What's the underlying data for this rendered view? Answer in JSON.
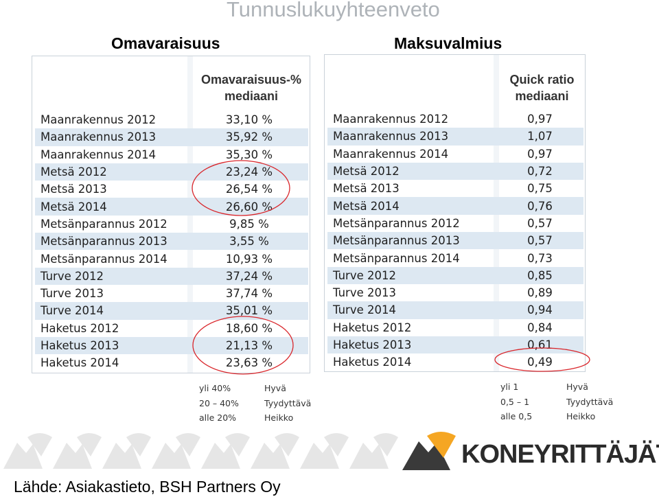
{
  "title": "Tunnuslukuyhteenveto",
  "left": {
    "heading": "Omavaraisuus",
    "col_header_line1": "Omavaraisuus-%",
    "col_header_line2": "mediaani",
    "rows": [
      {
        "label": "Maanrakennus 2012",
        "value": "33,10 %"
      },
      {
        "label": "Maanrakennus 2013",
        "value": "35,92 %"
      },
      {
        "label": "Maanrakennus 2014",
        "value": "35,30 %"
      },
      {
        "label": "Metsä 2012",
        "value": "23,24 %"
      },
      {
        "label": "Metsä 2013",
        "value": "26,54 %"
      },
      {
        "label": "Metsä 2014",
        "value": "26,60 %"
      },
      {
        "label": "Metsänparannus 2012",
        "value": "9,85 %"
      },
      {
        "label": "Metsänparannus 2013",
        "value": "3,55 %"
      },
      {
        "label": "Metsänparannus 2014",
        "value": "10,93 %"
      },
      {
        "label": "Turve 2012",
        "value": "37,24 %"
      },
      {
        "label": "Turve 2013",
        "value": "37,74 %"
      },
      {
        "label": "Turve 2014",
        "value": "35,01 %"
      },
      {
        "label": "Haketus 2012",
        "value": "18,60 %"
      },
      {
        "label": "Haketus 2013",
        "value": "21,13 %"
      },
      {
        "label": "Haketus 2014",
        "value": "23,63 %"
      }
    ],
    "legend": [
      {
        "range": "yli 40%",
        "rating": "Hyvä"
      },
      {
        "range": "20 – 40%",
        "rating": "Tyydyttävä"
      },
      {
        "range": "alle 20%",
        "rating": "Heikko"
      }
    ]
  },
  "right": {
    "heading": "Maksuvalmius",
    "col_header_line1": "Quick ratio",
    "col_header_line2": "mediaani",
    "rows": [
      {
        "label": "Maanrakennus 2012",
        "value": "0,97"
      },
      {
        "label": "Maanrakennus 2013",
        "value": "1,07"
      },
      {
        "label": "Maanrakennus 2014",
        "value": "0,97"
      },
      {
        "label": "Metsä 2012",
        "value": "0,72"
      },
      {
        "label": "Metsä 2013",
        "value": "0,75"
      },
      {
        "label": "Metsä 2014",
        "value": "0,76"
      },
      {
        "label": "Metsänparannus 2012",
        "value": "0,57"
      },
      {
        "label": "Metsänparannus 2013",
        "value": "0,57"
      },
      {
        "label": "Metsänparannus 2014",
        "value": "0,73"
      },
      {
        "label": "Turve 2012",
        "value": "0,85"
      },
      {
        "label": "Turve 2013",
        "value": "0,89"
      },
      {
        "label": "Turve 2014",
        "value": "0,94"
      },
      {
        "label": "Haketus 2012",
        "value": "0,84"
      },
      {
        "label": "Haketus 2013",
        "value": "0,61"
      },
      {
        "label": "Haketus 2014",
        "value": "0,49"
      }
    ],
    "legend": [
      {
        "range": "yli 1",
        "rating": "Hyvä"
      },
      {
        "range": "0,5 – 1",
        "rating": "Tyydyttävä"
      },
      {
        "range": "alle 0,5",
        "rating": "Heikko"
      }
    ]
  },
  "source": "Lähde: Asiakastieto, BSH Partners Oy",
  "brand": "KONEYRITTÄJÄT",
  "colors": {
    "highlight_circle": "#d9262b",
    "row_stripe": "#dde8f2",
    "logo_accent": "#f5a623"
  }
}
